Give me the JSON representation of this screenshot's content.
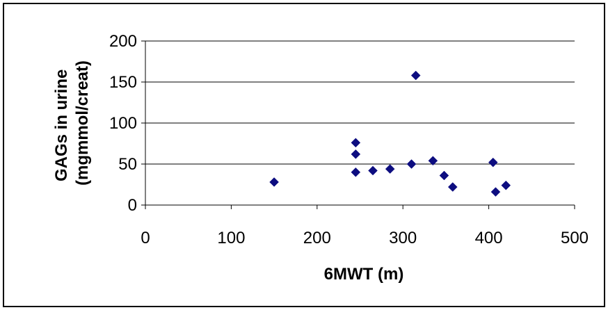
{
  "chart_data": {
    "type": "scatter",
    "title": "",
    "xlabel": "6MWT (m)",
    "ylabel": "GAGs in urine (mgmmol/creat)",
    "ylabel_lines": [
      "GAGs in urine",
      "(mgmmol/creat)"
    ],
    "xlim": [
      0,
      500
    ],
    "ylim": [
      0,
      200
    ],
    "x_ticks": [
      0,
      100,
      200,
      300,
      400,
      500
    ],
    "y_ticks": [
      0,
      50,
      100,
      150,
      200
    ],
    "grid": {
      "horizontal": true,
      "vertical": false
    },
    "legend": "none",
    "marker": "diamond",
    "colors": {
      "marker": "#0d0d80",
      "gridline": "#000000",
      "axis": "#000000"
    },
    "series": [
      {
        "points": [
          {
            "x": 150,
            "y": 28
          },
          {
            "x": 245,
            "y": 76
          },
          {
            "x": 245,
            "y": 62
          },
          {
            "x": 245,
            "y": 40
          },
          {
            "x": 265,
            "y": 42
          },
          {
            "x": 285,
            "y": 44
          },
          {
            "x": 310,
            "y": 50
          },
          {
            "x": 315,
            "y": 158
          },
          {
            "x": 335,
            "y": 54
          },
          {
            "x": 348,
            "y": 36
          },
          {
            "x": 358,
            "y": 22
          },
          {
            "x": 405,
            "y": 52
          },
          {
            "x": 408,
            "y": 16
          },
          {
            "x": 420,
            "y": 24
          }
        ]
      }
    ]
  }
}
